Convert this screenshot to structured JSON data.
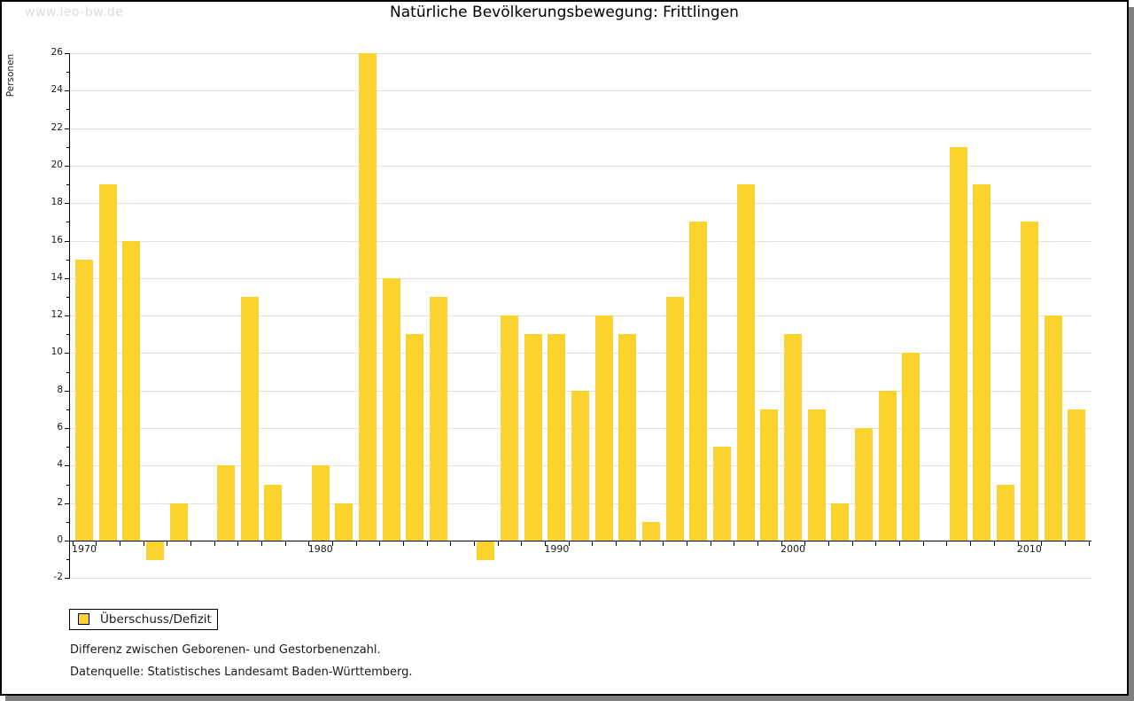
{
  "watermark": "www.leo-bw.de",
  "title": "Natürliche Bevölkerungsbewegung: Frittlingen",
  "legend": {
    "label": "Überschuss/Defizit"
  },
  "notes": {
    "line1": "Differenz zwischen Geborenen- und Gestorbenenzahl.",
    "line2": "Datenquelle: Statistisches Landesamt Baden-Württemberg."
  },
  "colors": {
    "bar": "#fcd32e",
    "grid": "#e2e2e2",
    "axis": "#000000",
    "shadow": "#7f7f7f",
    "watermark": "#dcdcdc"
  },
  "chart_data": {
    "type": "bar",
    "title": "Natürliche Bevölkerungsbewegung: Frittlingen",
    "xlabel": "",
    "ylabel": "Personen",
    "ylim": [
      -2,
      26
    ],
    "ytick_step": 2,
    "grid": true,
    "legend_position": "bottom-left",
    "series_name": "Überschuss/Defizit",
    "categories": [
      "1970",
      "1971",
      "1972",
      "1973",
      "1974",
      "1975",
      "1976",
      "1977",
      "1978",
      "1979",
      "1980",
      "1981",
      "1982",
      "1983",
      "1984",
      "1985",
      "1986",
      "1987",
      "1988",
      "1989",
      "1990",
      "1991",
      "1992",
      "1993",
      "1994",
      "1995",
      "1996",
      "1997",
      "1998",
      "1999",
      "2000",
      "2001",
      "2002",
      "2003",
      "2004",
      "2005",
      "2006",
      "2007",
      "2008",
      "2009",
      "2010",
      "2011",
      "2012"
    ],
    "values": [
      15,
      19,
      16,
      -1,
      2,
      0,
      4,
      13,
      3,
      0,
      4,
      2,
      26,
      14,
      11,
      13,
      0,
      -1,
      12,
      11,
      11,
      8,
      12,
      11,
      1,
      13,
      17,
      5,
      19,
      7,
      11,
      7,
      2,
      6,
      8,
      10,
      0,
      21,
      19,
      3,
      17,
      12,
      7
    ],
    "x_decade_labels": [
      "1970",
      "1980",
      "1990",
      "2000",
      "2010"
    ]
  }
}
